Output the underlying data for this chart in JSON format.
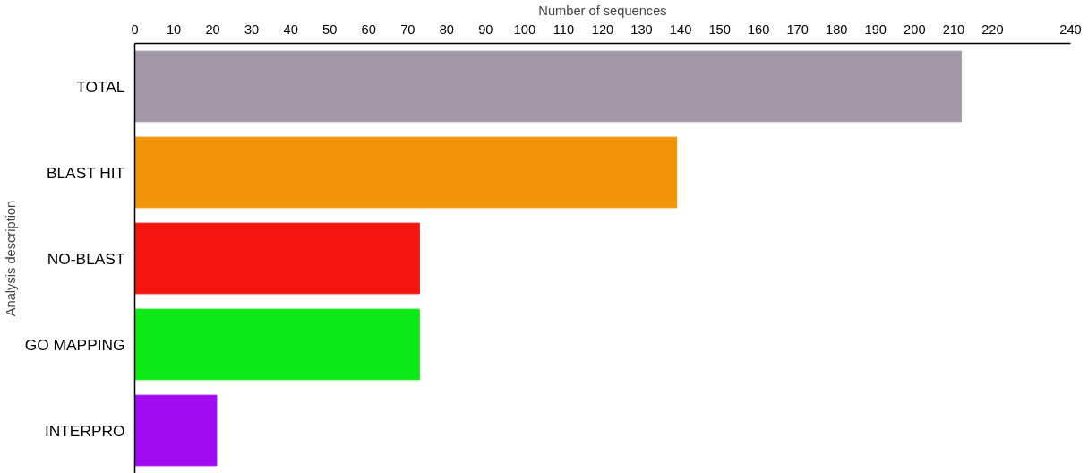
{
  "chart_data": {
    "type": "bar",
    "orientation": "horizontal",
    "xlabel": "Number of sequences",
    "ylabel": "Analysis description",
    "categories": [
      "TOTAL",
      "BLAST HIT",
      "NO-BLAST",
      "GO MAPPING",
      "INTERPRO"
    ],
    "values": [
      212,
      139,
      73,
      73,
      21
    ],
    "colors": [
      "#a299a8",
      "#f0950a",
      "#f2150f",
      "#0de817",
      "#a00bf2"
    ],
    "xlim": [
      0,
      240
    ],
    "xticks": [
      0,
      10,
      20,
      30,
      40,
      50,
      60,
      70,
      80,
      90,
      100,
      110,
      120,
      130,
      140,
      150,
      160,
      170,
      180,
      190,
      200,
      210,
      220,
      240
    ],
    "grid": false
  }
}
